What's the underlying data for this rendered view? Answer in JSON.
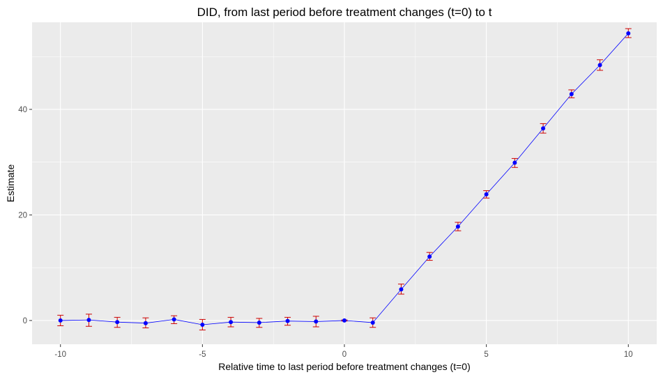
{
  "chart_data": {
    "type": "line",
    "title": "DID, from last period before treatment changes (t=0) to t",
    "xlabel": "Relative time to last period before treatment changes (t=0)",
    "ylabel": "Estimate",
    "xlim": [
      -11,
      11
    ],
    "ylim": [
      -4.5,
      56.5
    ],
    "x_ticks": [
      -10,
      -5,
      0,
      5,
      10
    ],
    "y_ticks": [
      0,
      20,
      40
    ],
    "grid": true,
    "colors": {
      "panel": "#EBEBEB",
      "grid": "#FFFFFF",
      "line": "#0000FF",
      "point": "#0000FF",
      "errorbar": "#CC0000"
    },
    "series": [
      {
        "x": [
          -10,
          -9,
          -8,
          -7,
          -6,
          -5,
          -4,
          -3,
          -2,
          -1,
          0,
          1,
          2,
          3,
          4,
          5,
          6,
          7,
          8,
          9,
          10
        ],
        "values": [
          0.0,
          0.1,
          -0.3,
          -0.5,
          0.2,
          -0.8,
          -0.3,
          -0.4,
          -0.1,
          -0.2,
          0.0,
          -0.4,
          5.9,
          12.1,
          17.8,
          23.9,
          29.9,
          36.4,
          42.9,
          48.4,
          54.4
        ],
        "lower": [
          -1.0,
          -1.1,
          -1.3,
          -1.4,
          -0.6,
          -1.8,
          -1.2,
          -1.3,
          -0.9,
          -1.2,
          -0.1,
          -1.3,
          5.0,
          11.4,
          17.0,
          23.2,
          29.0,
          35.5,
          42.2,
          47.4,
          53.6
        ],
        "upper": [
          1.0,
          1.2,
          0.6,
          0.5,
          0.9,
          0.2,
          0.6,
          0.4,
          0.6,
          0.8,
          0.1,
          0.5,
          6.9,
          12.9,
          18.6,
          24.6,
          30.7,
          37.3,
          43.7,
          49.4,
          55.3
        ]
      }
    ]
  }
}
